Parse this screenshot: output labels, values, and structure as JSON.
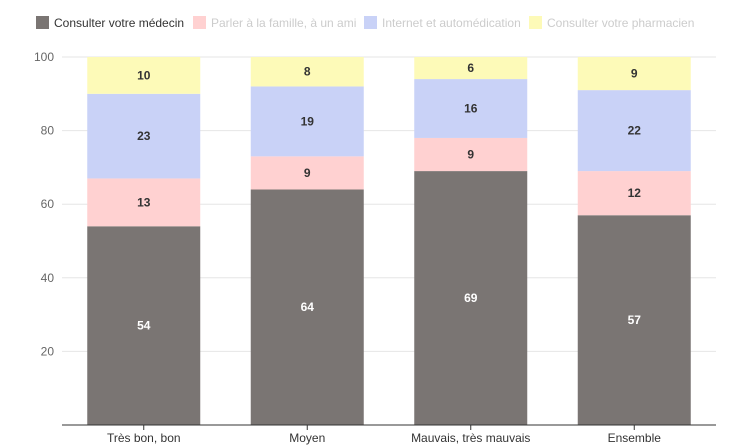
{
  "chart_data": {
    "type": "bar",
    "stacked": true,
    "categories": [
      "Très bon, bon",
      "Moyen",
      "Mauvais, très mauvais",
      "Ensemble"
    ],
    "series": [
      {
        "name": "Consulter votre médecin",
        "values": [
          54,
          64,
          69,
          57
        ],
        "color": "#7a7573",
        "label_color": "#ffffff",
        "legend_text_color": "#333333"
      },
      {
        "name": "Parler à la famille, à un ami",
        "values": [
          13,
          9,
          9,
          12
        ],
        "color": "#ffd1d1",
        "label_color": "#333333",
        "legend_text_color": "#cccccc"
      },
      {
        "name": "Internet et automédication",
        "values": [
          23,
          19,
          16,
          22
        ],
        "color": "#c9d2f7",
        "label_color": "#333333",
        "legend_text_color": "#cccccc"
      },
      {
        "name": "Consulter votre pharmacien",
        "values": [
          10,
          8,
          6,
          9
        ],
        "color": "#fdfab8",
        "label_color": "#333333",
        "legend_text_color": "#cccccc"
      }
    ],
    "ylim": [
      0,
      100
    ],
    "yticks": [
      20,
      40,
      60,
      80,
      100
    ],
    "grid": true,
    "legend_position": "top-left",
    "title": "",
    "xlabel": "",
    "ylabel": ""
  }
}
